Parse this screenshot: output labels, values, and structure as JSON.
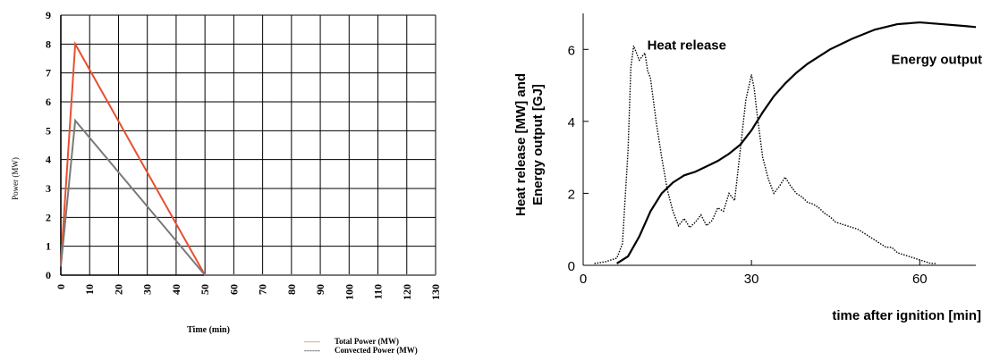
{
  "chart_data": [
    {
      "type": "line",
      "title": "",
      "xlabel": "Time (min)",
      "ylabel": "Power (MW)",
      "xlim": [
        0,
        130
      ],
      "ylim": [
        0,
        9
      ],
      "x_ticks": [
        "0",
        "10",
        "20",
        "30",
        "40",
        "50",
        "60",
        "70",
        "80",
        "90",
        "100",
        "110",
        "120",
        "130"
      ],
      "y_ticks": [
        "0",
        "1",
        "2",
        "3",
        "4",
        "5",
        "6",
        "7",
        "8",
        "9"
      ],
      "grid": true,
      "legend_position": "bottom-right",
      "series": [
        {
          "name": "Total Power (MW)",
          "color": "#e8502f",
          "x": [
            0,
            5,
            50,
            130
          ],
          "y": [
            0.4,
            8.0,
            0.0,
            0.0
          ]
        },
        {
          "name": "Convected Power (MW)",
          "color": "#7a7a7a",
          "x": [
            0,
            5,
            50,
            130
          ],
          "y": [
            0.3,
            5.35,
            0.0,
            0.0
          ]
        }
      ],
      "legend": [
        {
          "marker": "------",
          "label": "Total Power (MW)",
          "color": "#e8502f"
        },
        {
          "marker": "------",
          "label": "Convected Power (MW)",
          "color": "#333333"
        }
      ]
    },
    {
      "type": "line",
      "title": "",
      "xlabel": "time after ignition [min]",
      "ylabel_lines": [
        "Heat release [MW] and",
        "Energy output [GJ]"
      ],
      "xlim": [
        0,
        70
      ],
      "ylim": [
        0,
        7
      ],
      "x_ticks": [
        "0",
        "30",
        "60"
      ],
      "y_ticks": [
        "0",
        "2",
        "4",
        "6"
      ],
      "grid": false,
      "series": [
        {
          "name": "Heat release",
          "style": "dotted",
          "x": [
            2,
            4,
            6,
            7,
            8,
            8.5,
            9,
            10,
            11,
            11.5,
            12,
            13,
            14,
            15,
            16,
            17,
            18,
            19,
            20,
            21,
            22,
            23,
            24,
            25,
            26,
            27,
            28,
            29,
            30,
            30.5,
            31,
            32,
            33,
            34,
            35,
            36,
            37,
            38,
            39,
            40,
            41,
            42,
            43,
            44,
            45,
            46,
            47,
            48,
            49,
            50,
            51,
            52,
            53,
            54,
            55,
            56,
            57,
            58,
            59,
            60,
            61,
            62,
            63
          ],
          "y": [
            0.05,
            0.1,
            0.2,
            0.6,
            3.2,
            5.5,
            6.1,
            5.7,
            5.9,
            5.4,
            5.2,
            4.0,
            3.0,
            2.1,
            1.5,
            1.1,
            1.3,
            1.05,
            1.2,
            1.4,
            1.1,
            1.25,
            1.6,
            1.5,
            2.0,
            1.8,
            3.2,
            4.6,
            5.3,
            4.9,
            4.2,
            3.0,
            2.4,
            2.0,
            2.2,
            2.45,
            2.2,
            2.0,
            1.9,
            1.75,
            1.7,
            1.6,
            1.45,
            1.35,
            1.2,
            1.15,
            1.1,
            1.05,
            1.0,
            0.9,
            0.8,
            0.7,
            0.6,
            0.5,
            0.5,
            0.35,
            0.3,
            0.25,
            0.2,
            0.15,
            0.1,
            0.05,
            0.05
          ]
        },
        {
          "name": "Energy output",
          "style": "solid",
          "x": [
            6,
            8,
            10,
            12,
            14,
            16,
            18,
            20,
            22,
            24,
            26,
            28,
            30,
            32,
            34,
            36,
            38,
            40,
            44,
            48,
            52,
            56,
            60,
            64,
            68,
            70
          ],
          "y": [
            0.05,
            0.25,
            0.8,
            1.5,
            2.0,
            2.3,
            2.5,
            2.6,
            2.75,
            2.9,
            3.1,
            3.35,
            3.75,
            4.25,
            4.7,
            5.05,
            5.35,
            5.6,
            6.0,
            6.3,
            6.55,
            6.7,
            6.75,
            6.7,
            6.65,
            6.62
          ]
        }
      ],
      "annotations": [
        {
          "text": "Heat release",
          "x": 9.5,
          "y": 6.0
        },
        {
          "text": "Energy output",
          "x": 53,
          "y": 5.6
        }
      ]
    }
  ]
}
